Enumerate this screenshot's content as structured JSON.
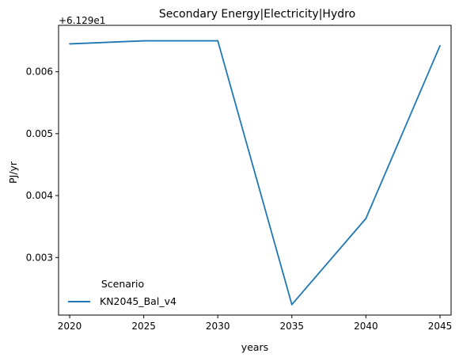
{
  "chart_data": {
    "type": "line",
    "title": "Secondary Energy|Electricity|Hydro",
    "xlabel": "years",
    "ylabel": "PJ/yr",
    "offset_label": "+6.129e1",
    "x": [
      2020,
      2025,
      2030,
      2035,
      2040,
      2045
    ],
    "xticks": [
      "2020",
      "2025",
      "2030",
      "2035",
      "2040",
      "2045"
    ],
    "yticks": [
      0.003,
      0.004,
      0.005,
      0.006
    ],
    "ytick_labels": [
      "0.003",
      "0.004",
      "0.005",
      "0.006"
    ],
    "xlim": [
      2019.25,
      2045.75
    ],
    "ylim": [
      0.00207,
      0.00675
    ],
    "grid": false,
    "legend": {
      "title": "Scenario",
      "placement": "lower-left"
    },
    "series": [
      {
        "name": "KN2045_Bal_v4",
        "color": "#1f77b4",
        "values": [
          0.00645,
          0.0065,
          0.0065,
          0.00224,
          0.00363,
          0.00642
        ]
      }
    ]
  }
}
